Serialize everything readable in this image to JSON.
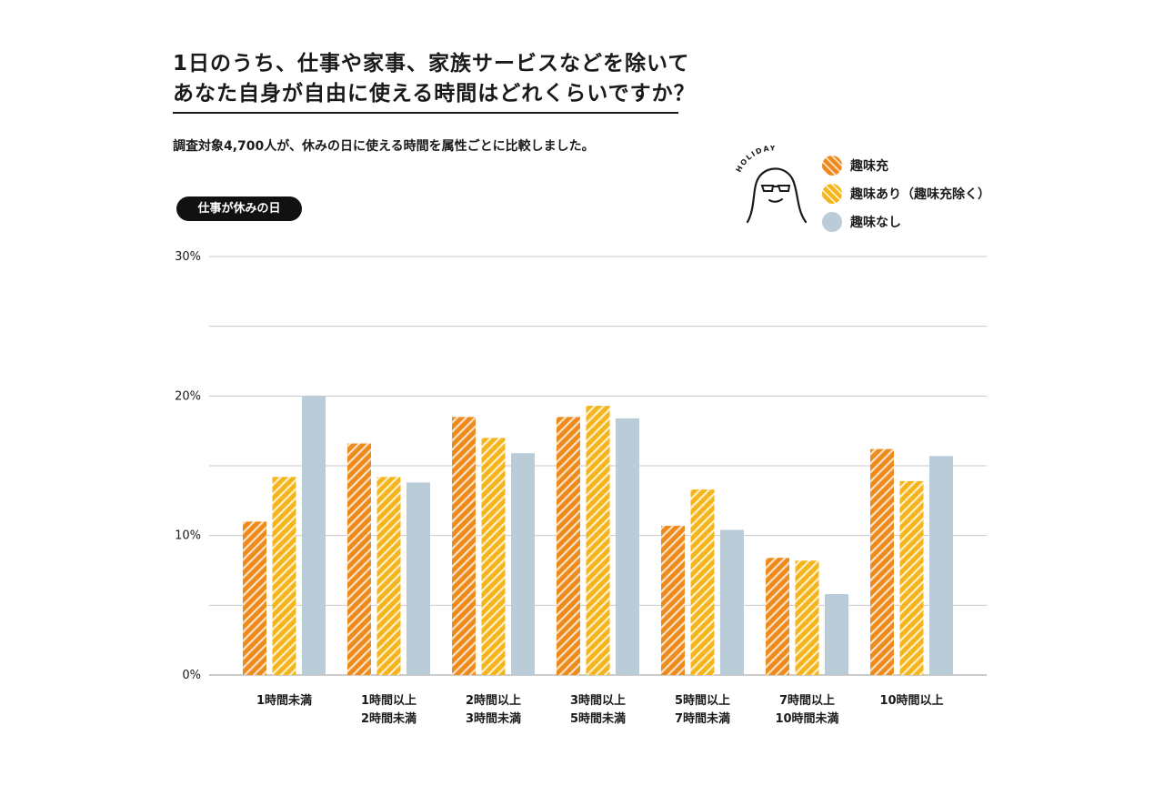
{
  "title_line1": "1日のうち、仕事や家事、家族サービスなどを除いて",
  "title_line2": "あなた自身が自由に使える時間はどれくらいですか？",
  "subtitle": "調査対象4,700人が、休みの日に使える時間を属性ごとに比較しました。",
  "pill_label": "仕事が休みの日",
  "mascot_text": "HOLIDAY",
  "legend": [
    {
      "label": "趣味充",
      "color": "#ee8a1c"
    },
    {
      "label": "趣味あり（趣味充除く）",
      "color": "#f6b41c"
    },
    {
      "label": "趣味なし",
      "color": "#b9ccd8"
    }
  ],
  "chart_data": {
    "type": "bar",
    "categories": [
      [
        "1時間未満"
      ],
      [
        "1時間以上",
        "2時間未満"
      ],
      [
        "2時間以上",
        "3時間未満"
      ],
      [
        "3時間以上",
        "5時間未満"
      ],
      [
        "5時間以上",
        "7時間未満"
      ],
      [
        "7時間以上",
        "10時間未満"
      ],
      [
        "10時間以上"
      ]
    ],
    "series": [
      {
        "name": "趣味充",
        "color": "#ee8a1c",
        "pattern": "stripe",
        "values": [
          11.0,
          16.6,
          18.5,
          18.5,
          10.7,
          8.4,
          16.2
        ]
      },
      {
        "name": "趣味あり（趣味充除く）",
        "color": "#f6b41c",
        "pattern": "stripe",
        "values": [
          14.2,
          14.2,
          17.0,
          19.3,
          13.3,
          8.2,
          13.9
        ]
      },
      {
        "name": "趣味なし",
        "color": "#b9ccd8",
        "pattern": "solid",
        "values": [
          20.0,
          13.8,
          15.9,
          18.4,
          10.4,
          5.8,
          15.7
        ]
      }
    ],
    "ylim": [
      0,
      30
    ],
    "yticks": [
      0,
      10,
      20,
      30
    ],
    "ytick_labels": [
      "0%",
      "10%",
      "20%",
      "30%"
    ],
    "grid_step": 5,
    "grid": true,
    "legend_position": "top-right"
  }
}
